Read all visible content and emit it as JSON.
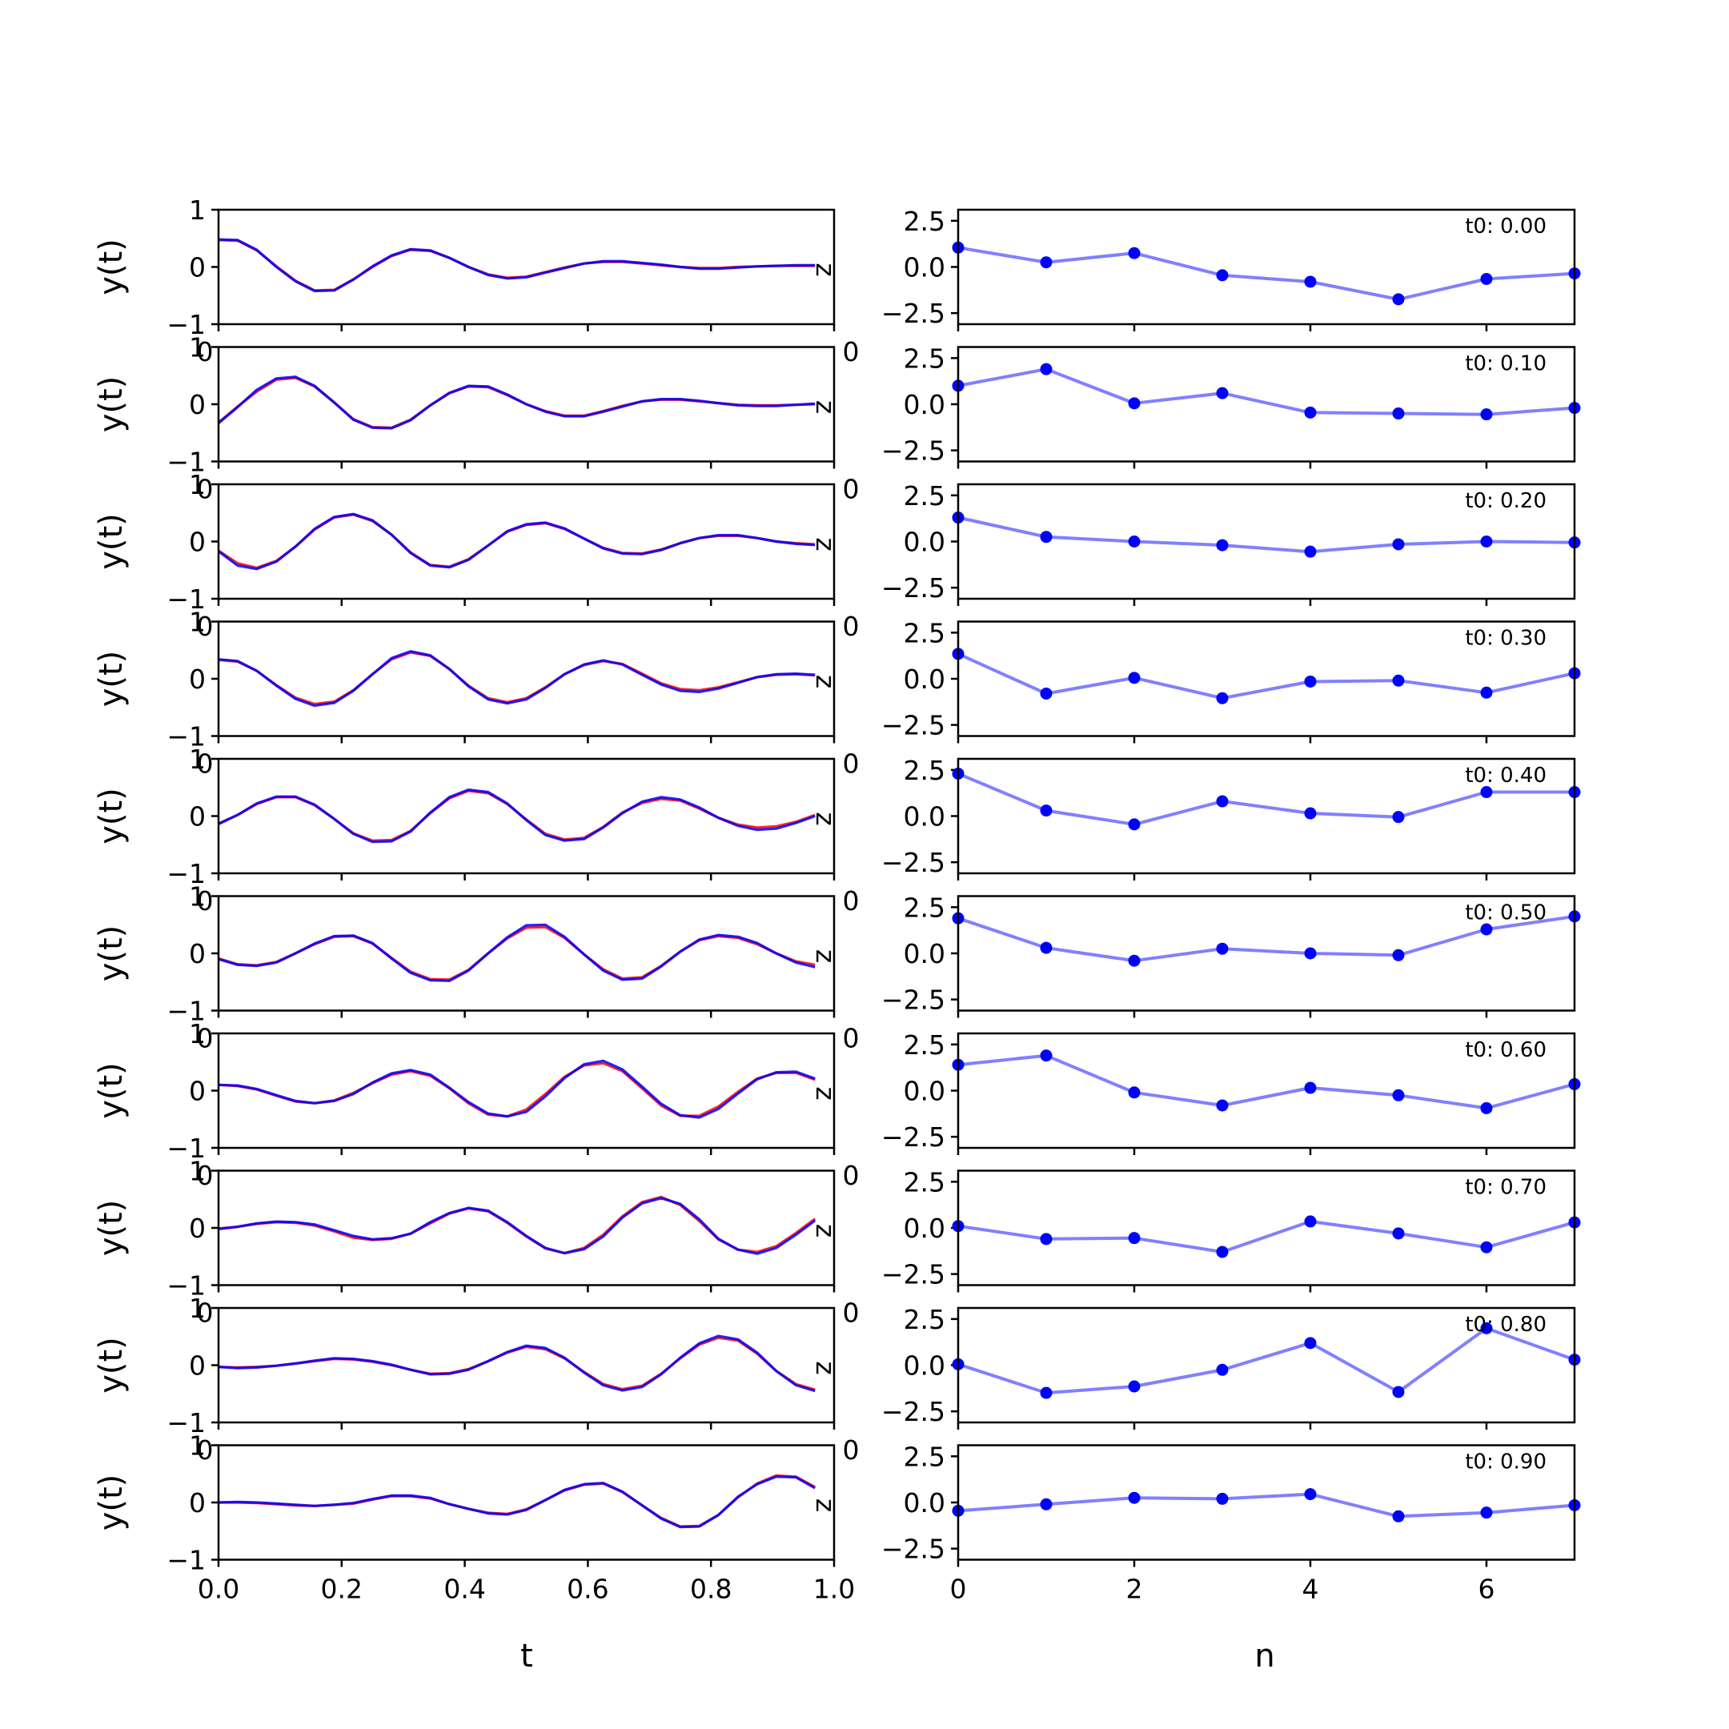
{
  "chart_data": {
    "type": "line",
    "left_column": {
      "xlabel": "t",
      "ylabel": "y(t)",
      "xlim": [
        0,
        1
      ],
      "ylim": [
        -1,
        1
      ],
      "yticks": [
        "1",
        "0",
        "−1"
      ],
      "xticks": [
        "0.0",
        "0.2",
        "0.4",
        "0.6",
        "0.8",
        "1.0"
      ],
      "side_label": "z",
      "stray_label": "0",
      "colors": {
        "series_a": "#0000ff",
        "series_b": "#ff0000"
      },
      "t": [
        0.0,
        0.031,
        0.062,
        0.094,
        0.125,
        0.156,
        0.188,
        0.219,
        0.25,
        0.281,
        0.312,
        0.344,
        0.375,
        0.406,
        0.438,
        0.469,
        0.5,
        0.531,
        0.562,
        0.594,
        0.625,
        0.656,
        0.688,
        0.719,
        0.75,
        0.781,
        0.812,
        0.844,
        0.875,
        0.906,
        0.938,
        0.969
      ],
      "panels": [
        {
          "a": [
            0.48,
            0.47,
            0.3,
            0.0,
            -0.25,
            -0.42,
            -0.41,
            -0.22,
            0.01,
            0.2,
            0.31,
            0.29,
            0.16,
            0.0,
            -0.14,
            -0.2,
            -0.18,
            -0.1,
            -0.02,
            0.06,
            0.1,
            0.1,
            0.07,
            0.04,
            0.0,
            -0.03,
            -0.03,
            -0.01,
            0.01,
            0.02,
            0.03,
            0.03
          ],
          "b": [
            0.47,
            0.46,
            0.29,
            0.01,
            -0.24,
            -0.41,
            -0.4,
            -0.22,
            0.0,
            0.19,
            0.3,
            0.28,
            0.16,
            0.0,
            -0.13,
            -0.19,
            -0.17,
            -0.09,
            -0.01,
            0.06,
            0.09,
            0.09,
            0.06,
            0.03,
            0.0,
            -0.02,
            -0.02,
            0.0,
            0.01,
            0.02,
            0.02,
            0.02
          ]
        },
        {
          "a": [
            -0.33,
            -0.05,
            0.25,
            0.45,
            0.48,
            0.32,
            0.03,
            -0.27,
            -0.41,
            -0.42,
            -0.28,
            -0.02,
            0.2,
            0.32,
            0.31,
            0.17,
            0.0,
            -0.13,
            -0.21,
            -0.21,
            -0.13,
            -0.04,
            0.05,
            0.09,
            0.09,
            0.06,
            0.02,
            -0.02,
            -0.03,
            -0.03,
            -0.01,
            0.01
          ],
          "b": [
            -0.32,
            -0.04,
            0.22,
            0.43,
            0.46,
            0.31,
            0.03,
            -0.26,
            -0.4,
            -0.41,
            -0.27,
            -0.02,
            0.19,
            0.31,
            0.3,
            0.16,
            0.0,
            -0.12,
            -0.2,
            -0.2,
            -0.12,
            -0.03,
            0.05,
            0.08,
            0.08,
            0.05,
            0.02,
            -0.01,
            -0.02,
            -0.02,
            -0.01,
            0.0
          ]
        },
        {
          "a": [
            -0.17,
            -0.42,
            -0.48,
            -0.35,
            -0.09,
            0.22,
            0.43,
            0.48,
            0.37,
            0.12,
            -0.2,
            -0.42,
            -0.45,
            -0.32,
            -0.07,
            0.18,
            0.3,
            0.33,
            0.23,
            0.05,
            -0.12,
            -0.21,
            -0.22,
            -0.15,
            -0.03,
            0.06,
            0.11,
            0.11,
            0.06,
            0.0,
            -0.04,
            -0.06
          ],
          "b": [
            -0.16,
            -0.38,
            -0.46,
            -0.34,
            -0.09,
            0.21,
            0.42,
            0.47,
            0.36,
            0.12,
            -0.19,
            -0.41,
            -0.44,
            -0.31,
            -0.07,
            0.17,
            0.29,
            0.32,
            0.22,
            0.05,
            -0.11,
            -0.2,
            -0.21,
            -0.14,
            -0.03,
            0.06,
            0.1,
            0.1,
            0.06,
            0.0,
            -0.03,
            -0.05
          ]
        },
        {
          "a": [
            0.34,
            0.31,
            0.14,
            -0.12,
            -0.35,
            -0.47,
            -0.42,
            -0.21,
            0.08,
            0.36,
            0.48,
            0.41,
            0.17,
            -0.13,
            -0.36,
            -0.43,
            -0.36,
            -0.16,
            0.08,
            0.25,
            0.32,
            0.25,
            0.07,
            -0.1,
            -0.21,
            -0.23,
            -0.17,
            -0.07,
            0.03,
            0.08,
            0.09,
            0.07
          ],
          "b": [
            0.33,
            0.3,
            0.14,
            -0.11,
            -0.33,
            -0.44,
            -0.4,
            -0.2,
            0.08,
            0.34,
            0.46,
            0.4,
            0.17,
            -0.12,
            -0.34,
            -0.41,
            -0.34,
            -0.15,
            0.08,
            0.24,
            0.31,
            0.26,
            0.09,
            -0.08,
            -0.18,
            -0.2,
            -0.15,
            -0.06,
            0.03,
            0.07,
            0.08,
            0.06
          ]
        },
        {
          "a": [
            -0.14,
            0.02,
            0.22,
            0.34,
            0.34,
            0.2,
            -0.05,
            -0.31,
            -0.45,
            -0.44,
            -0.27,
            0.06,
            0.33,
            0.46,
            0.42,
            0.22,
            -0.07,
            -0.33,
            -0.43,
            -0.4,
            -0.2,
            0.05,
            0.25,
            0.33,
            0.29,
            0.15,
            -0.03,
            -0.17,
            -0.24,
            -0.22,
            -0.12,
            0.0
          ],
          "b": [
            -0.13,
            0.02,
            0.21,
            0.33,
            0.33,
            0.19,
            -0.05,
            -0.3,
            -0.43,
            -0.42,
            -0.26,
            0.05,
            0.31,
            0.44,
            0.4,
            0.21,
            -0.06,
            -0.31,
            -0.41,
            -0.38,
            -0.19,
            0.06,
            0.23,
            0.3,
            0.27,
            0.13,
            -0.03,
            -0.15,
            -0.2,
            -0.18,
            -0.1,
            0.02
          ]
        },
        {
          "a": [
            -0.1,
            -0.2,
            -0.22,
            -0.16,
            0.0,
            0.17,
            0.3,
            0.31,
            0.18,
            -0.09,
            -0.34,
            -0.47,
            -0.48,
            -0.3,
            0.0,
            0.28,
            0.49,
            0.5,
            0.29,
            -0.02,
            -0.3,
            -0.46,
            -0.44,
            -0.23,
            0.03,
            0.24,
            0.32,
            0.29,
            0.18,
            0.0,
            -0.16,
            -0.24
          ],
          "b": [
            -0.09,
            -0.19,
            -0.21,
            -0.15,
            0.0,
            0.16,
            0.29,
            0.3,
            0.17,
            -0.08,
            -0.32,
            -0.45,
            -0.46,
            -0.29,
            0.0,
            0.26,
            0.45,
            0.46,
            0.27,
            -0.02,
            -0.28,
            -0.44,
            -0.42,
            -0.22,
            0.03,
            0.23,
            0.3,
            0.27,
            0.16,
            0.0,
            -0.14,
            -0.2
          ]
        },
        {
          "a": [
            0.1,
            0.09,
            0.03,
            -0.08,
            -0.18,
            -0.22,
            -0.18,
            -0.06,
            0.14,
            0.3,
            0.36,
            0.28,
            0.05,
            -0.2,
            -0.4,
            -0.45,
            -0.37,
            -0.1,
            0.22,
            0.46,
            0.52,
            0.37,
            0.07,
            -0.23,
            -0.43,
            -0.47,
            -0.32,
            -0.05,
            0.2,
            0.32,
            0.33,
            0.21
          ],
          "b": [
            0.1,
            0.08,
            0.02,
            -0.09,
            -0.19,
            -0.22,
            -0.17,
            -0.04,
            0.13,
            0.28,
            0.34,
            0.26,
            0.04,
            -0.22,
            -0.42,
            -0.45,
            -0.33,
            -0.06,
            0.24,
            0.44,
            0.48,
            0.34,
            0.04,
            -0.26,
            -0.44,
            -0.44,
            -0.28,
            -0.02,
            0.21,
            0.31,
            0.31,
            0.19
          ]
        },
        {
          "a": [
            -0.02,
            0.02,
            0.08,
            0.11,
            0.1,
            0.06,
            -0.04,
            -0.14,
            -0.2,
            -0.18,
            -0.1,
            0.1,
            0.26,
            0.35,
            0.3,
            0.1,
            -0.14,
            -0.35,
            -0.44,
            -0.37,
            -0.15,
            0.18,
            0.43,
            0.52,
            0.42,
            0.15,
            -0.19,
            -0.38,
            -0.45,
            -0.35,
            -0.12,
            0.13
          ],
          "b": [
            -0.01,
            0.02,
            0.07,
            0.1,
            0.09,
            0.04,
            -0.06,
            -0.17,
            -0.21,
            -0.19,
            -0.1,
            0.08,
            0.25,
            0.34,
            0.29,
            0.09,
            -0.15,
            -0.36,
            -0.44,
            -0.35,
            -0.12,
            0.2,
            0.45,
            0.54,
            0.4,
            0.12,
            -0.2,
            -0.38,
            -0.42,
            -0.32,
            -0.09,
            0.16
          ]
        },
        {
          "a": [
            -0.03,
            -0.05,
            -0.04,
            -0.01,
            0.03,
            0.08,
            0.12,
            0.11,
            0.07,
            0.01,
            -0.08,
            -0.16,
            -0.15,
            -0.08,
            0.07,
            0.23,
            0.34,
            0.3,
            0.13,
            -0.13,
            -0.35,
            -0.44,
            -0.38,
            -0.16,
            0.13,
            0.38,
            0.51,
            0.45,
            0.22,
            -0.1,
            -0.35,
            -0.45
          ],
          "b": [
            -0.03,
            -0.04,
            -0.03,
            -0.01,
            0.03,
            0.07,
            0.11,
            0.1,
            0.06,
            0.0,
            -0.08,
            -0.15,
            -0.14,
            -0.07,
            0.07,
            0.22,
            0.32,
            0.28,
            0.12,
            -0.12,
            -0.33,
            -0.42,
            -0.36,
            -0.15,
            0.12,
            0.36,
            0.48,
            0.43,
            0.2,
            -0.1,
            -0.33,
            -0.43
          ]
        },
        {
          "a": [
            0.0,
            0.01,
            0.0,
            -0.02,
            -0.04,
            -0.06,
            -0.04,
            -0.01,
            0.06,
            0.12,
            0.12,
            0.08,
            -0.03,
            -0.11,
            -0.19,
            -0.21,
            -0.13,
            0.04,
            0.22,
            0.32,
            0.34,
            0.19,
            -0.05,
            -0.28,
            -0.43,
            -0.42,
            -0.22,
            0.1,
            0.32,
            0.45,
            0.44,
            0.25
          ],
          "b": [
            0.0,
            0.0,
            -0.01,
            -0.03,
            -0.05,
            -0.06,
            -0.04,
            -0.02,
            0.05,
            0.11,
            0.11,
            0.07,
            -0.03,
            -0.11,
            -0.18,
            -0.2,
            -0.12,
            0.04,
            0.21,
            0.31,
            0.33,
            0.18,
            -0.05,
            -0.27,
            -0.42,
            -0.41,
            -0.22,
            0.09,
            0.33,
            0.47,
            0.45,
            0.27
          ]
        }
      ]
    },
    "right_column": {
      "xlabel": "n",
      "xlim": [
        0,
        7
      ],
      "ylim": [
        -3.1,
        3.1
      ],
      "yticks": [
        "2.5",
        "0.0",
        "−2.5"
      ],
      "xticks": [
        "0",
        "2",
        "4",
        "6"
      ],
      "stray_label": "0",
      "colors": {
        "line": "#8080ff",
        "marker": "#0000ff"
      },
      "n": [
        0,
        1,
        2,
        3,
        4,
        5,
        6,
        7
      ],
      "panels": [
        {
          "label": "t0: 0.00",
          "values": [
            1.05,
            0.25,
            0.75,
            -0.45,
            -0.8,
            -1.75,
            -0.65,
            -0.35
          ]
        },
        {
          "label": "t0: 0.10",
          "values": [
            1.0,
            1.9,
            0.05,
            0.6,
            -0.45,
            -0.5,
            -0.55,
            -0.2
          ]
        },
        {
          "label": "t0: 0.20",
          "values": [
            1.3,
            0.25,
            0.0,
            -0.2,
            -0.55,
            -0.15,
            0.0,
            -0.05
          ]
        },
        {
          "label": "t0: 0.30",
          "values": [
            1.35,
            -0.8,
            0.05,
            -1.05,
            -0.15,
            -0.1,
            -0.75,
            0.3
          ]
        },
        {
          "label": "t0: 0.40",
          "values": [
            2.3,
            0.3,
            -0.45,
            0.8,
            0.15,
            -0.05,
            1.3,
            1.3
          ]
        },
        {
          "label": "t0: 0.50",
          "values": [
            1.9,
            0.3,
            -0.4,
            0.25,
            0.0,
            -0.1,
            1.3,
            2.0
          ]
        },
        {
          "label": "t0: 0.60",
          "values": [
            1.4,
            1.9,
            -0.1,
            -0.8,
            0.15,
            -0.25,
            -0.95,
            0.35
          ]
        },
        {
          "label": "t0: 0.70",
          "values": [
            0.1,
            -0.6,
            -0.55,
            -1.3,
            0.35,
            -0.3,
            -1.05,
            0.3
          ]
        },
        {
          "label": "t0: 0.80",
          "values": [
            0.05,
            -1.5,
            -1.15,
            -0.25,
            1.2,
            -1.45,
            2.0,
            0.3
          ]
        },
        {
          "label": "t0: 0.90",
          "values": [
            -0.45,
            -0.1,
            0.25,
            0.2,
            0.45,
            -0.75,
            -0.55,
            -0.15
          ]
        }
      ]
    }
  }
}
